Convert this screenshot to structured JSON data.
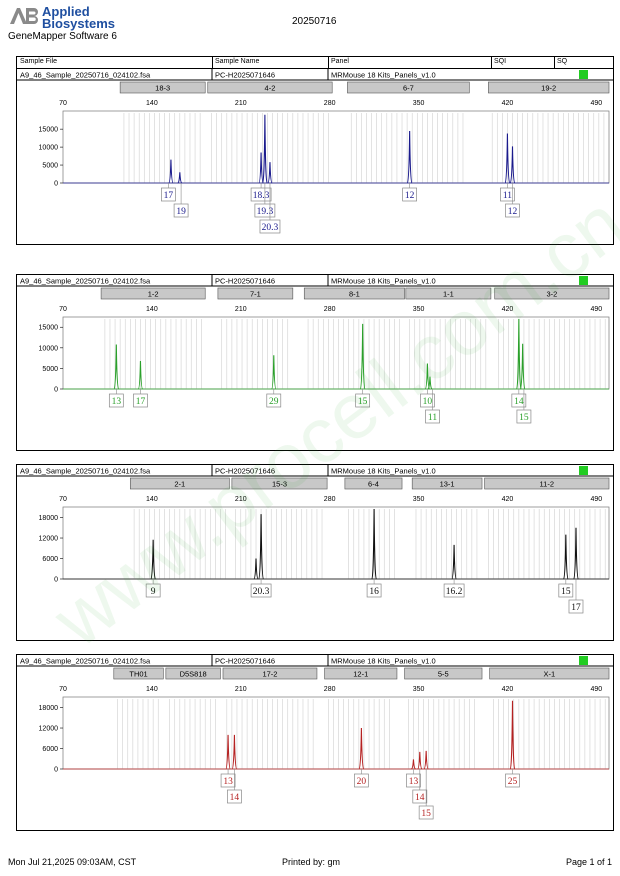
{
  "header": {
    "logo_abbr": "AB",
    "brand_line1": "Applied",
    "brand_line2": "Biosystems",
    "app_name": "GeneMapper Software 6",
    "run_date": "20250716"
  },
  "columns": {
    "sample_file": "Sample File",
    "sample_name": "Sample Name",
    "panel": "Panel",
    "sqi": "SQI",
    "sq": "SQ"
  },
  "x_ticks": [
    70,
    140,
    210,
    280,
    350,
    420,
    490
  ],
  "watermark": "www.procell.com.cn",
  "status_color": "#22cc22",
  "chart_data": [
    {
      "type": "line",
      "sample_file": "A9_46_Sample_20250716_024102.fsa",
      "sample_name": "PC-H2025071646",
      "panel": "MRMouse 18 Kits_Panels_v1.0",
      "color": "#1a1a8c",
      "xlim": [
        70,
        500
      ],
      "ylim": [
        0,
        19500
      ],
      "y_ticks": [
        0,
        5000,
        10000,
        15000
      ],
      "markers": [
        {
          "name": "18-3",
          "range": [
            115,
            182
          ]
        },
        {
          "name": "4-2",
          "range": [
            184,
            282
          ]
        },
        {
          "name": "6-7",
          "range": [
            294,
            390
          ]
        },
        {
          "name": "19-2",
          "range": [
            405,
            516
          ]
        }
      ],
      "peaks": [
        {
          "x": 155,
          "y": 6500
        },
        {
          "x": 162,
          "y": 3000
        },
        {
          "x": 226,
          "y": 8500
        },
        {
          "x": 229,
          "y": 19000
        },
        {
          "x": 233,
          "y": 5800
        },
        {
          "x": 343,
          "y": 14500
        },
        {
          "x": 420,
          "y": 13800
        },
        {
          "x": 424,
          "y": 10200
        }
      ],
      "alleles": [
        {
          "label": "17",
          "x": 153,
          "row": 0
        },
        {
          "label": "19",
          "x": 163,
          "row": 1
        },
        {
          "label": "18.3",
          "x": 226,
          "row": 0
        },
        {
          "label": "19.3",
          "x": 229,
          "row": 1
        },
        {
          "label": "20.3",
          "x": 233,
          "row": 2
        },
        {
          "label": "12",
          "x": 343,
          "row": 0
        },
        {
          "label": "11",
          "x": 420,
          "row": 0
        },
        {
          "label": "12",
          "x": 424,
          "row": 1
        }
      ]
    },
    {
      "type": "line",
      "sample_file": "A9_46_Sample_20250716_024102.fsa",
      "sample_name": "PC-H2025071646",
      "panel": "MRMouse 18 Kits_Panels_v1.0",
      "color": "#2aa02a",
      "xlim": [
        70,
        500
      ],
      "ylim": [
        0,
        17000
      ],
      "y_ticks": [
        0,
        5000,
        10000,
        15000
      ],
      "markers": [
        {
          "name": "1-2",
          "range": [
            100,
            182
          ]
        },
        {
          "name": "7-1",
          "range": [
            192,
            251
          ]
        },
        {
          "name": "8-1",
          "range": [
            260,
            339
          ]
        },
        {
          "name": "1-1",
          "range": [
            340,
            407
          ]
        },
        {
          "name": "3-2",
          "range": [
            410,
            520
          ]
        }
      ],
      "peaks": [
        {
          "x": 112,
          "y": 10800
        },
        {
          "x": 131,
          "y": 6800
        },
        {
          "x": 236,
          "y": 8200
        },
        {
          "x": 306,
          "y": 15800
        },
        {
          "x": 357,
          "y": 6200
        },
        {
          "x": 359,
          "y": 3000
        },
        {
          "x": 429,
          "y": 17000
        },
        {
          "x": 432,
          "y": 11000
        }
      ],
      "alleles": [
        {
          "label": "13",
          "x": 112,
          "row": 0
        },
        {
          "label": "17",
          "x": 131,
          "row": 0
        },
        {
          "label": "29",
          "x": 236,
          "row": 0
        },
        {
          "label": "15",
          "x": 306,
          "row": 0
        },
        {
          "label": "10",
          "x": 357,
          "row": 0
        },
        {
          "label": "11",
          "x": 361,
          "row": 1
        },
        {
          "label": "14",
          "x": 429,
          "row": 0
        },
        {
          "label": "15",
          "x": 433,
          "row": 1
        }
      ]
    },
    {
      "type": "line",
      "sample_file": "A9_46_Sample_20250716_024102.fsa",
      "sample_name": "PC-H2025071646",
      "panel": "MRMouse 18 Kits_Panels_v1.0",
      "color": "#111111",
      "xlim": [
        70,
        500
      ],
      "ylim": [
        0,
        20500
      ],
      "y_ticks": [
        0,
        6000,
        12000,
        18000
      ],
      "markers": [
        {
          "name": "2-1",
          "range": [
            123,
            201
          ]
        },
        {
          "name": "15-3",
          "range": [
            203,
            278
          ]
        },
        {
          "name": "6-4",
          "range": [
            292,
            337
          ]
        },
        {
          "name": "13-1",
          "range": [
            345,
            400
          ]
        },
        {
          "name": "11-2",
          "range": [
            402,
            541
          ]
        }
      ],
      "peaks": [
        {
          "x": 141,
          "y": 11500
        },
        {
          "x": 222,
          "y": 6000
        },
        {
          "x": 226,
          "y": 19000
        },
        {
          "x": 315,
          "y": 20500
        },
        {
          "x": 378,
          "y": 10000
        },
        {
          "x": 466,
          "y": 13000
        },
        {
          "x": 474,
          "y": 15000
        }
      ],
      "alleles": [
        {
          "label": "9",
          "x": 141,
          "row": 0
        },
        {
          "label": "20.3",
          "x": 226,
          "row": 0
        },
        {
          "label": "16",
          "x": 315,
          "row": 0
        },
        {
          "label": "16.2",
          "x": 378,
          "row": 0
        },
        {
          "label": "15",
          "x": 466,
          "row": 0
        },
        {
          "label": "17",
          "x": 474,
          "row": 1
        }
      ]
    },
    {
      "type": "line",
      "sample_file": "A9_46_Sample_20250716_024102.fsa",
      "sample_name": "PC-H2025071646",
      "panel": "MRMouse 18 Kits_Panels_v1.0",
      "color": "#b52222",
      "xlim": [
        70,
        500
      ],
      "ylim": [
        0,
        20500
      ],
      "y_ticks": [
        0,
        6000,
        12000,
        18000
      ],
      "markers": [
        {
          "name": "TH01",
          "range": [
            110,
            149
          ]
        },
        {
          "name": "D5S818",
          "range": [
            151,
            194
          ]
        },
        {
          "name": "17-2",
          "range": [
            196,
            270
          ]
        },
        {
          "name": "12-1",
          "range": [
            276,
            333
          ]
        },
        {
          "name": "5-5",
          "range": [
            339,
            400
          ]
        },
        {
          "name": "X-1",
          "range": [
            406,
            531
          ]
        }
      ],
      "peaks": [
        {
          "x": 200,
          "y": 10000
        },
        {
          "x": 205,
          "y": 10000
        },
        {
          "x": 305,
          "y": 12000
        },
        {
          "x": 346,
          "y": 2800
        },
        {
          "x": 351,
          "y": 5000
        },
        {
          "x": 356,
          "y": 5300
        },
        {
          "x": 424,
          "y": 20000
        }
      ],
      "alleles": [
        {
          "label": "13",
          "x": 200,
          "row": 0
        },
        {
          "label": "14",
          "x": 205,
          "row": 1
        },
        {
          "label": "20",
          "x": 305,
          "row": 0
        },
        {
          "label": "13",
          "x": 346,
          "row": 0
        },
        {
          "label": "14",
          "x": 351,
          "row": 1
        },
        {
          "label": "15",
          "x": 356,
          "row": 2
        },
        {
          "label": "25",
          "x": 424,
          "row": 0
        }
      ]
    }
  ],
  "footer": {
    "print_time": "Mon Jul 21,2025 09:03AM, CST",
    "printed_by": "Printed by: gm",
    "page": "Page 1 of 1"
  }
}
